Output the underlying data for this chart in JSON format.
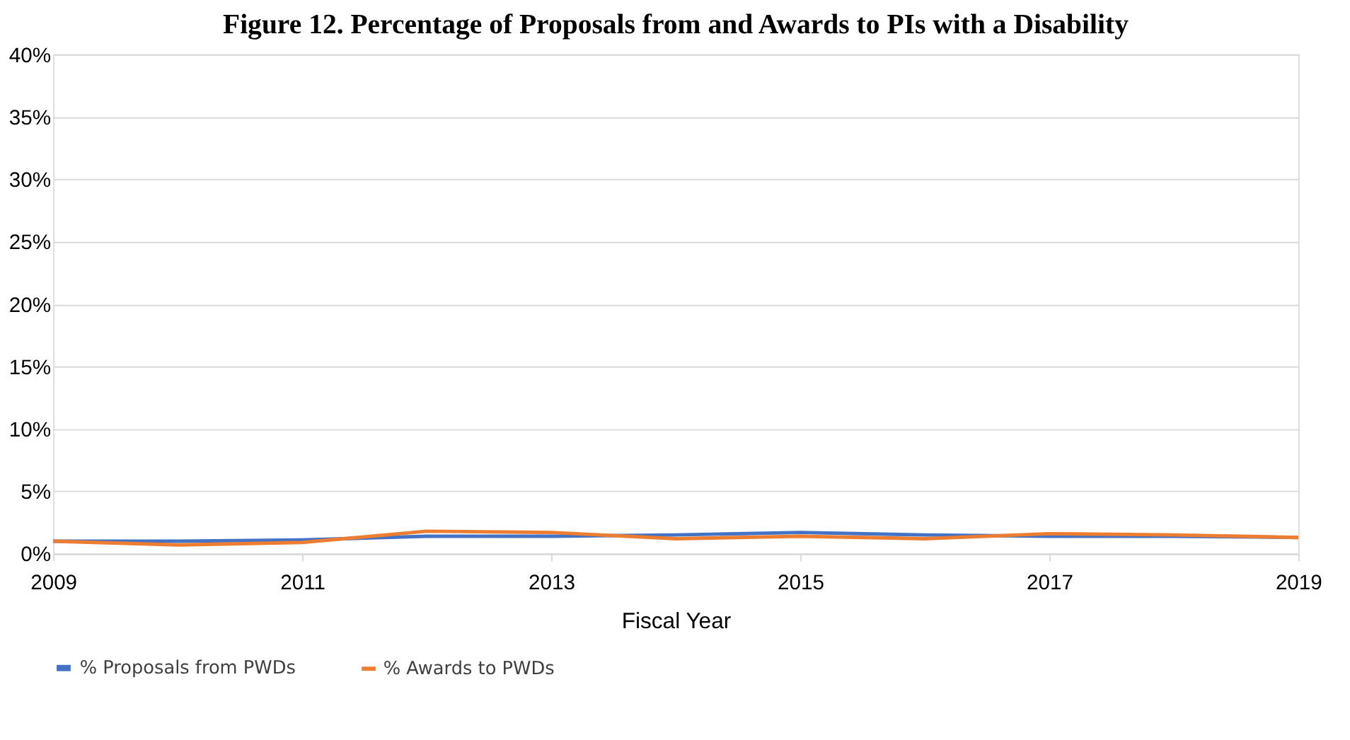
{
  "chart_data": {
    "type": "line",
    "title": "Figure 12. Percentage of Proposals from and Awards to PIs with a Disability",
    "xlabel": "Fiscal Year",
    "x": [
      2009,
      2010,
      2011,
      2012,
      2013,
      2014,
      2015,
      2016,
      2017,
      2018,
      2019
    ],
    "xlim": [
      2009,
      2019
    ],
    "xticks": [
      2009,
      2011,
      2013,
      2015,
      2017,
      2019
    ],
    "ylim": [
      0,
      40
    ],
    "yticks": [
      {
        "value": 0,
        "label": "0%"
      },
      {
        "value": 5,
        "label": "5%"
      },
      {
        "value": 10,
        "label": "10%"
      },
      {
        "value": 15,
        "label": "15%"
      },
      {
        "value": 20,
        "label": "20%"
      },
      {
        "value": 25,
        "label": "25%"
      },
      {
        "value": 30,
        "label": "30%"
      },
      {
        "value": 35,
        "label": "35%"
      },
      {
        "value": 40,
        "label": "40%"
      }
    ],
    "series": [
      {
        "name": "% Proposals from PWDs",
        "color": "#4472c4",
        "values": [
          1.0,
          1.0,
          1.1,
          1.4,
          1.4,
          1.5,
          1.7,
          1.5,
          1.4,
          1.4,
          1.3
        ]
      },
      {
        "name": "% Awards to PWDs",
        "color": "#ed7d31",
        "values": [
          1.0,
          0.7,
          0.9,
          1.8,
          1.7,
          1.2,
          1.4,
          1.2,
          1.6,
          1.5,
          1.3
        ]
      }
    ],
    "grid": "y",
    "legend": "bottom",
    "marker": "none",
    "line_style": "solid"
  }
}
